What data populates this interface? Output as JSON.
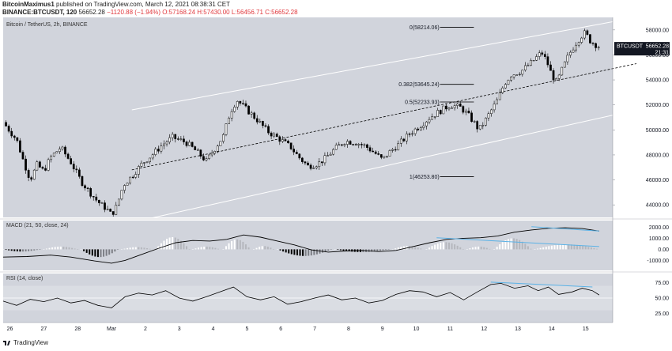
{
  "header": {
    "author": "BitcoinMaximus1",
    "published_text": "published on TradingView.com, March 12, 2021 08:38:31 CET",
    "symbol_line": "BINANCE:BTCUSDT, 120",
    "last": "56652.28",
    "change": "−1120.88 (−1.94%)",
    "open": "O:57168.24",
    "high": "H:57430.00",
    "low": "L:56456.71",
    "close": "C:56652.28"
  },
  "footer": {
    "brand": "TradingView"
  },
  "colors": {
    "background": "#ffffff",
    "panel_bg": "#d1d4dc",
    "candle": "#000000",
    "channel": "#ffffff",
    "divergence": "#5bb2e6",
    "macd_line": "#000000",
    "rsi_band": "#dadde3"
  },
  "chart_data": [
    {
      "type": "candlestick",
      "title": "Bitcoin / TetherUS, 2h, BINANCE",
      "ylim": [
        43000,
        59000
      ],
      "y_ticks": [
        44000,
        46000,
        48000,
        50000,
        52000,
        54000,
        56000,
        58000
      ],
      "y_tick_labels": [
        "44000.00",
        "46000.00",
        "48000.00",
        "50000.00",
        "52000.00",
        "54000.00",
        "56000.00",
        "58000.00"
      ],
      "x_labels": [
        "26",
        "27",
        "28",
        "Mar",
        "2",
        "3",
        "4",
        "5",
        "6",
        "7",
        "8",
        "9",
        "10",
        "11",
        "12",
        "13",
        "14",
        "15"
      ],
      "x_label_days": [
        26,
        27,
        28,
        29,
        30,
        31,
        32,
        33,
        34,
        35,
        36,
        37,
        38,
        39,
        40,
        41,
        42,
        43
      ],
      "x_range": [
        25.8,
        43.8
      ],
      "price_label": {
        "symbol": "BTCUSDT",
        "value": "56652.28",
        "time": "21:31"
      },
      "price_path": [
        [
          25.8,
          50600
        ],
        [
          26.2,
          49200
        ],
        [
          26.4,
          47500
        ],
        [
          26.6,
          46000
        ],
        [
          26.8,
          47200
        ],
        [
          27.0,
          46700
        ],
        [
          27.2,
          47800
        ],
        [
          27.5,
          48600
        ],
        [
          27.8,
          47400
        ],
        [
          28.1,
          45900
        ],
        [
          28.3,
          45200
        ],
        [
          28.55,
          44400
        ],
        [
          28.7,
          44000
        ],
        [
          28.85,
          43700
        ],
        [
          29.0,
          43200
        ],
        [
          29.15,
          43900
        ],
        [
          29.35,
          45600
        ],
        [
          29.6,
          46300
        ],
        [
          29.9,
          47300
        ],
        [
          30.2,
          48000
        ],
        [
          30.5,
          48800
        ],
        [
          30.8,
          49400
        ],
        [
          31.0,
          49200
        ],
        [
          31.2,
          49000
        ],
        [
          31.5,
          48300
        ],
        [
          31.8,
          47500
        ],
        [
          32.0,
          48300
        ],
        [
          32.3,
          49500
        ],
        [
          32.5,
          51400
        ],
        [
          32.7,
          52400
        ],
        [
          33.0,
          51600
        ],
        [
          33.3,
          50800
        ],
        [
          33.6,
          49900
        ],
        [
          34.0,
          49200
        ],
        [
          34.3,
          48600
        ],
        [
          34.5,
          47900
        ],
        [
          34.8,
          47100
        ],
        [
          35.1,
          47300
        ],
        [
          35.3,
          47700
        ],
        [
          35.6,
          48500
        ],
        [
          35.9,
          49100
        ],
        [
          36.2,
          49000
        ],
        [
          36.5,
          48700
        ],
        [
          36.8,
          48100
        ],
        [
          37.0,
          47600
        ],
        [
          37.2,
          48200
        ],
        [
          37.5,
          48900
        ],
        [
          37.8,
          49700
        ],
        [
          38.1,
          50300
        ],
        [
          38.4,
          51000
        ],
        [
          38.7,
          51500
        ],
        [
          39.0,
          52000
        ],
        [
          39.3,
          51800
        ],
        [
          39.5,
          51300
        ],
        [
          39.7,
          50600
        ],
        [
          39.85,
          50000
        ],
        [
          40.0,
          50600
        ],
        [
          40.2,
          51500
        ],
        [
          40.4,
          52400
        ],
        [
          40.6,
          53700
        ],
        [
          40.8,
          54400
        ],
        [
          41.1,
          54700
        ],
        [
          41.4,
          55400
        ],
        [
          41.7,
          56200
        ],
        [
          41.85,
          55500
        ],
        [
          42.0,
          54400
        ],
        [
          42.15,
          53800
        ],
        [
          42.3,
          54800
        ],
        [
          42.5,
          56000
        ],
        [
          42.7,
          56900
        ],
        [
          42.9,
          57600
        ],
        [
          43.0,
          57800
        ],
        [
          43.1,
          57200
        ],
        [
          43.25,
          56900
        ],
        [
          43.4,
          56652
        ]
      ],
      "channel": {
        "upper": [
          [
            29.6,
            51600
          ],
          [
            44.5,
            59000
          ]
        ],
        "middle": [
          [
            29.6,
            46800
          ],
          [
            44.5,
            55300
          ]
        ],
        "lower": [
          [
            29.6,
            42600
          ],
          [
            44.5,
            51600
          ]
        ]
      },
      "fib_levels": [
        {
          "label": "0(58214.06)",
          "price": 58214.06
        },
        {
          "label": "0.382(53645.24)",
          "price": 53645.24
        },
        {
          "label": "0.5(52233.93)",
          "price": 52233.93
        },
        {
          "label": "1(46253.80)",
          "price": 46253.8
        }
      ]
    },
    {
      "type": "bar",
      "title": "MACD (21, 50, close, 24)",
      "ylim": [
        -1900,
        2600
      ],
      "y_ticks": [
        -1000,
        0,
        1000,
        2000
      ],
      "y_tick_labels": [
        "-1000.00",
        "0.00",
        "1000.00",
        "2000.00"
      ],
      "macd_path": [
        [
          25.8,
          -700
        ],
        [
          26.5,
          -650
        ],
        [
          27.2,
          -520
        ],
        [
          27.8,
          -700
        ],
        [
          28.5,
          -1050
        ],
        [
          29.0,
          -1250
        ],
        [
          29.4,
          -1000
        ],
        [
          29.9,
          -450
        ],
        [
          30.4,
          100
        ],
        [
          30.9,
          600
        ],
        [
          31.4,
          800
        ],
        [
          31.9,
          750
        ],
        [
          32.4,
          900
        ],
        [
          32.9,
          1300
        ],
        [
          33.4,
          1100
        ],
        [
          33.9,
          750
        ],
        [
          34.4,
          400
        ],
        [
          34.9,
          -50
        ],
        [
          35.4,
          -250
        ],
        [
          35.9,
          -150
        ],
        [
          36.4,
          -100
        ],
        [
          36.9,
          -200
        ],
        [
          37.4,
          -100
        ],
        [
          37.9,
          250
        ],
        [
          38.4,
          600
        ],
        [
          38.9,
          900
        ],
        [
          39.4,
          1000
        ],
        [
          39.9,
          1050
        ],
        [
          40.4,
          1200
        ],
        [
          40.9,
          1550
        ],
        [
          41.4,
          1750
        ],
        [
          41.9,
          1900
        ],
        [
          42.4,
          1950
        ],
        [
          42.9,
          1880
        ],
        [
          43.4,
          1650
        ]
      ],
      "histogram": [
        {
          "from": 25.8,
          "to": 26.9,
          "value": -200
        },
        {
          "from": 27.0,
          "to": 28.0,
          "value": 250
        },
        {
          "from": 28.1,
          "to": 29.2,
          "value": -700
        },
        {
          "from": 29.3,
          "to": 30.2,
          "value": 200
        },
        {
          "from": 30.3,
          "to": 31.3,
          "value": 1100
        },
        {
          "from": 31.4,
          "to": 32.2,
          "value": 250
        },
        {
          "from": 32.3,
          "to": 33.1,
          "value": 900
        },
        {
          "from": 33.2,
          "to": 33.8,
          "value": 300
        },
        {
          "from": 33.9,
          "to": 35.5,
          "value": -600
        },
        {
          "from": 35.6,
          "to": 37.2,
          "value": -250
        },
        {
          "from": 37.3,
          "to": 38.2,
          "value": 300
        },
        {
          "from": 38.3,
          "to": 39.4,
          "value": 650
        },
        {
          "from": 39.5,
          "to": 40.2,
          "value": 250
        },
        {
          "from": 40.3,
          "to": 41.4,
          "value": 1000
        },
        {
          "from": 41.5,
          "to": 43.4,
          "value": 450
        }
      ],
      "divergence_lines": [
        [
          [
            41.4,
            2050
          ],
          [
            43.4,
            1650
          ]
        ],
        [
          [
            38.6,
            1050
          ],
          [
            43.4,
            250
          ]
        ]
      ]
    },
    {
      "type": "line",
      "title": "RSI (14, close)",
      "ylim": [
        10,
        90
      ],
      "y_ticks": [
        25,
        50,
        75
      ],
      "y_tick_labels": [
        "25.00",
        "50.00",
        "75.00"
      ],
      "band": [
        30,
        70
      ],
      "rsi_path": [
        [
          25.8,
          45
        ],
        [
          26.2,
          38
        ],
        [
          26.6,
          48
        ],
        [
          27.0,
          44
        ],
        [
          27.4,
          50
        ],
        [
          27.8,
          42
        ],
        [
          28.2,
          46
        ],
        [
          28.6,
          38
        ],
        [
          29.0,
          34
        ],
        [
          29.4,
          52
        ],
        [
          29.8,
          58
        ],
        [
          30.2,
          55
        ],
        [
          30.6,
          62
        ],
        [
          31.0,
          50
        ],
        [
          31.4,
          45
        ],
        [
          31.8,
          52
        ],
        [
          32.2,
          60
        ],
        [
          32.6,
          68
        ],
        [
          33.0,
          52
        ],
        [
          33.4,
          47
        ],
        [
          33.8,
          52
        ],
        [
          34.2,
          40
        ],
        [
          34.6,
          44
        ],
        [
          35.0,
          50
        ],
        [
          35.4,
          55
        ],
        [
          35.8,
          47
        ],
        [
          36.2,
          50
        ],
        [
          36.6,
          42
        ],
        [
          37.0,
          46
        ],
        [
          37.4,
          56
        ],
        [
          37.8,
          62
        ],
        [
          38.2,
          60
        ],
        [
          38.6,
          52
        ],
        [
          39.0,
          59
        ],
        [
          39.4,
          47
        ],
        [
          39.8,
          60
        ],
        [
          40.2,
          72
        ],
        [
          40.5,
          74
        ],
        [
          40.9,
          66
        ],
        [
          41.3,
          70
        ],
        [
          41.6,
          62
        ],
        [
          41.9,
          68
        ],
        [
          42.2,
          56
        ],
        [
          42.6,
          60
        ],
        [
          42.9,
          66
        ],
        [
          43.2,
          62
        ],
        [
          43.4,
          55
        ]
      ],
      "divergence_lines": [
        [
          [
            40.2,
            76
          ],
          [
            43.2,
            68
          ]
        ]
      ]
    }
  ]
}
